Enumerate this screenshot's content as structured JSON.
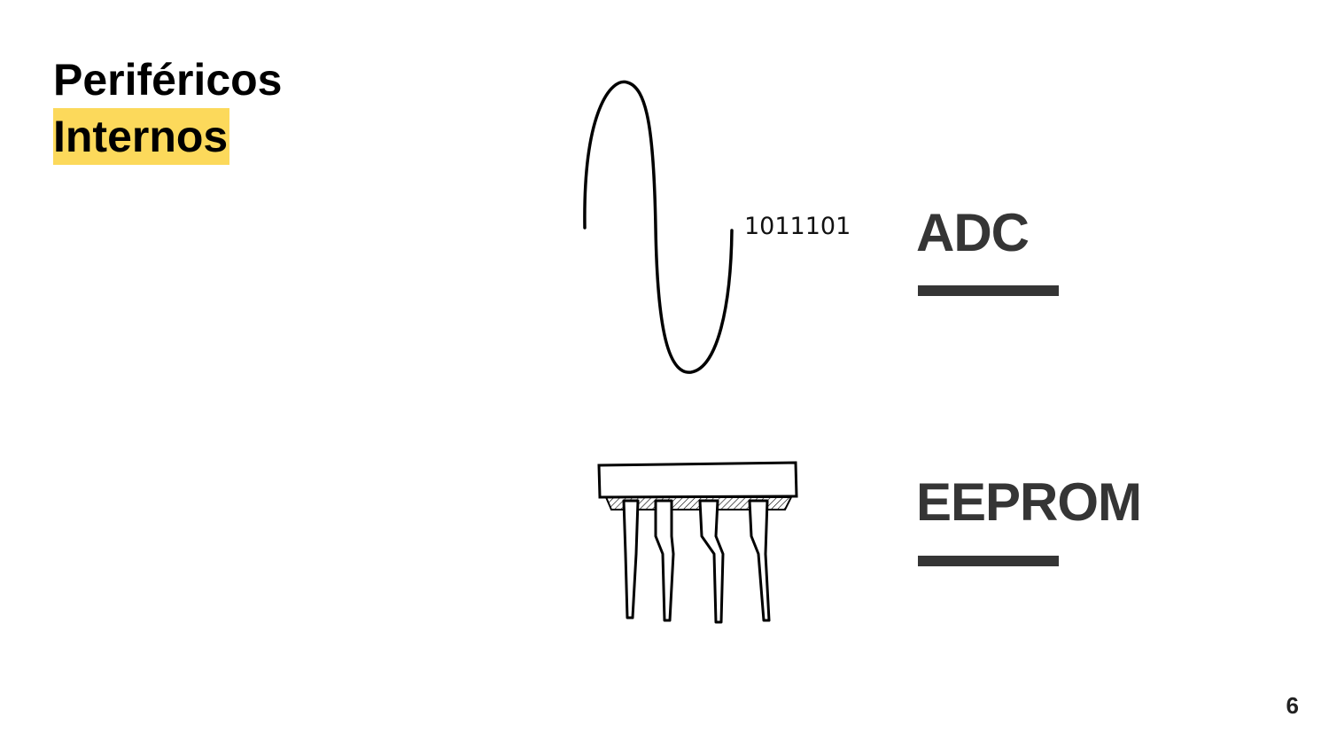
{
  "title": {
    "line1": "Periféricos",
    "line2": "Internos"
  },
  "items": [
    {
      "label": "ADC",
      "icon": "sine-wave-icon",
      "annotation": "1011101"
    },
    {
      "label": "EEPROM",
      "icon": "chip-icon"
    }
  ],
  "page_number": "6",
  "colors": {
    "highlight": "#fcd95b",
    "label": "#353535"
  }
}
